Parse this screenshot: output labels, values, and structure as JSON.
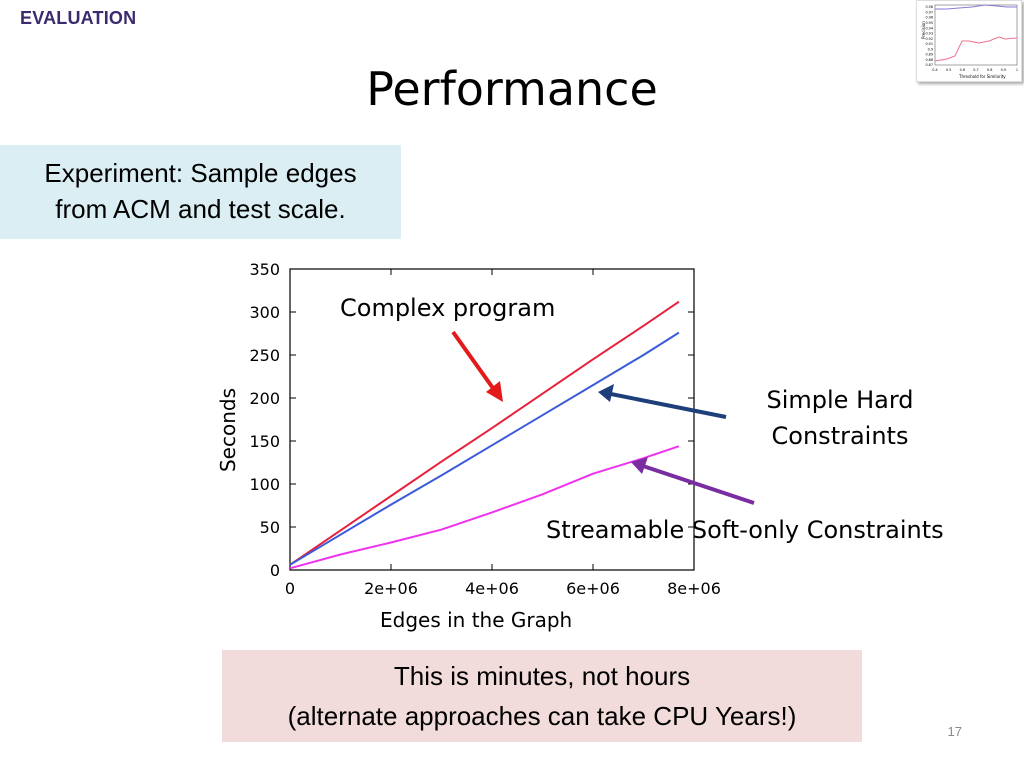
{
  "header": {
    "section_tag": "EVALUATION",
    "title": "Performance"
  },
  "experiment_box": {
    "line1": "Experiment: Sample edges",
    "line2": "from ACM and test scale."
  },
  "callouts": {
    "complex": "Complex program",
    "simple_line1": "Simple Hard",
    "simple_line2": "Constraints",
    "streamable": "Streamable Soft-only Constraints"
  },
  "note_box": {
    "line1": "This is minutes, not hours",
    "line2": "(alternate approaches can take CPU Years!)"
  },
  "page_number": "17",
  "colors": {
    "red_series": "#e8203c",
    "blue_series": "#3a5bd9",
    "magenta_series": "#f032f0",
    "red_arrow": "#e31a1a",
    "blue_arrow": "#1f3f7a",
    "purple_arrow": "#7a2da0"
  },
  "chart_data": {
    "type": "line",
    "xlabel": "Edges in the Graph",
    "ylabel": "Seconds",
    "xlim": [
      0,
      8000000
    ],
    "ylim": [
      0,
      350
    ],
    "xticks": [
      {
        "value": 0,
        "label": "0"
      },
      {
        "value": 2000000,
        "label": "2e+06"
      },
      {
        "value": 4000000,
        "label": "4e+06"
      },
      {
        "value": 6000000,
        "label": "6e+06"
      },
      {
        "value": 8000000,
        "label": "8e+06"
      }
    ],
    "yticks": [
      0,
      50,
      100,
      150,
      200,
      250,
      300,
      350
    ],
    "grid": false,
    "series": [
      {
        "key": "complex",
        "x": [
          0,
          1000000,
          2000000,
          3000000,
          4000000,
          5000000,
          6000000,
          7000000,
          7700000
        ],
        "y": [
          6,
          46,
          86,
          126,
          165,
          205,
          245,
          284,
          312
        ]
      },
      {
        "key": "simple",
        "x": [
          0,
          1000000,
          2000000,
          3000000,
          4000000,
          5000000,
          6000000,
          7000000,
          7700000
        ],
        "y": [
          6,
          41,
          76,
          110,
          145,
          180,
          215,
          250,
          276
        ]
      },
      {
        "key": "streamable",
        "x": [
          0,
          1000000,
          2000000,
          3000000,
          4000000,
          5000000,
          6000000,
          7000000,
          7700000
        ],
        "y": [
          2,
          18,
          32,
          47,
          67,
          88,
          112,
          130,
          144
        ]
      }
    ],
    "thumbnail": {
      "y_ticks": [
        "0.98",
        "0.97",
        "0.96",
        "0.95",
        "0.94",
        "0.93",
        "0.92",
        "0.91",
        "0.9",
        "0.89",
        "0.88",
        "0.87"
      ],
      "x_ticks": [
        "0.4",
        "0.5",
        "0.6",
        "0.7",
        "0.8",
        "0.9",
        "1"
      ],
      "ylabel": "Precision",
      "xlabel": "Threshold for Similarity"
    }
  }
}
